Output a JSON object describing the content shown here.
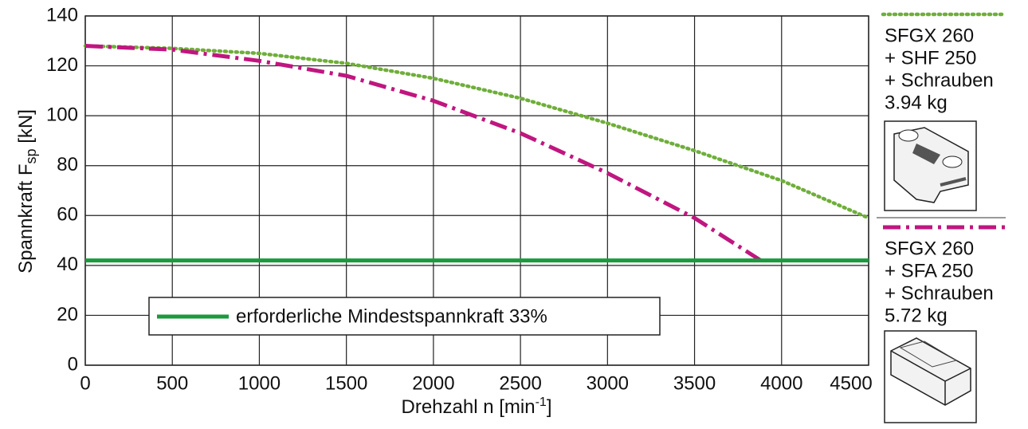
{
  "chart_data": {
    "type": "line",
    "x_label": [
      "Drehzahl n [min",
      "-1",
      "]"
    ],
    "y_label": [
      "Spannkraft F",
      "sp",
      " [kN]"
    ],
    "xlim": [
      0,
      4500
    ],
    "xticks": [
      0,
      500,
      1000,
      1500,
      2000,
      2500,
      3000,
      3500,
      4000,
      4500
    ],
    "ylim": [
      0,
      140
    ],
    "yticks": [
      0,
      20,
      40,
      60,
      80,
      100,
      120,
      140
    ],
    "grid": true,
    "series": [
      {
        "name": [
          "SFGX 260",
          "+ SHF 250",
          "+ Schrauben",
          "3.94 kg"
        ],
        "color": "#6fae3a",
        "style": "dotted",
        "x": [
          0,
          500,
          1000,
          1500,
          2000,
          2500,
          3000,
          3500,
          4000,
          4500
        ],
        "values": [
          128,
          127,
          125,
          121,
          115,
          107,
          97,
          86,
          74,
          59
        ]
      },
      {
        "name": [
          "SFGX 260",
          "+ SFA 250",
          "+ Schrauben",
          "5.72 kg"
        ],
        "color": "#c0167f",
        "style": "dashdot",
        "x": [
          0,
          500,
          1000,
          1500,
          2000,
          2500,
          3000,
          3500,
          3880
        ],
        "values": [
          128,
          126.5,
          122,
          116,
          106,
          93,
          77,
          59,
          42
        ]
      },
      {
        "name": "erforderliche Mindestspannkraft 33%",
        "color": "#1a9a3c",
        "style": "solid",
        "x": [
          0,
          4500
        ],
        "values": [
          42,
          42
        ]
      }
    ]
  }
}
